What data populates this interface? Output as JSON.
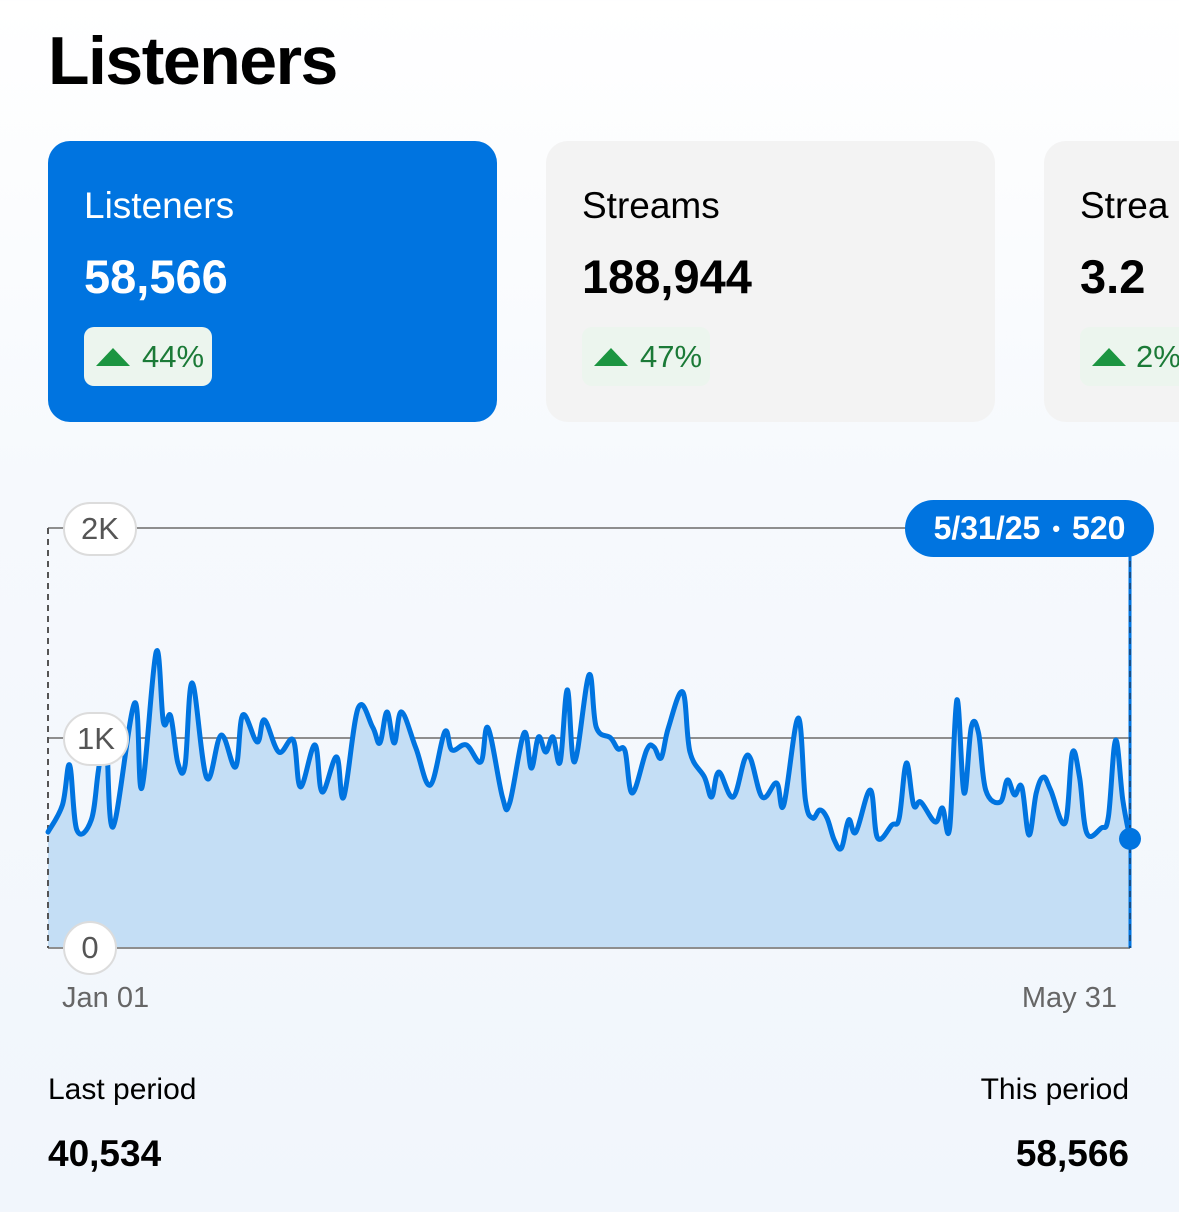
{
  "page_title": "Listeners",
  "cards": [
    {
      "label": "Listeners",
      "value": "58,566",
      "change": "44%",
      "direction": "up",
      "selected": true
    },
    {
      "label": "Streams",
      "value": "188,944",
      "change": "47%",
      "direction": "up",
      "selected": false
    },
    {
      "label": "Strea",
      "value": "3.2",
      "change": "2%",
      "direction": "up",
      "selected": false
    }
  ],
  "colors": {
    "accent": "#0074e0",
    "fill": "#c4def5",
    "positive": "#1c9541"
  },
  "tooltip": {
    "date": "5/31/25",
    "separator": "•",
    "value": "520"
  },
  "chart_data": {
    "type": "area",
    "title": "",
    "xlabel": "",
    "ylabel": "",
    "x_range": [
      "2025-01-01",
      "2025-05-31"
    ],
    "x_tick_labels": [
      "Jan 01",
      "May 31"
    ],
    "ylim": [
      0,
      2000
    ],
    "y_ticks": [
      {
        "value": 0,
        "label": "0"
      },
      {
        "value": 1000,
        "label": "1K"
      },
      {
        "value": 2000,
        "label": "2K"
      }
    ],
    "grid": true,
    "points": [
      [
        "2025-01-01",
        552
      ],
      [
        "2025-01-03",
        681
      ],
      [
        "2025-01-04",
        871
      ],
      [
        "2025-01-05",
        562
      ],
      [
        "2025-01-07",
        610
      ],
      [
        "2025-01-08",
        848
      ],
      [
        "2025-01-09",
        1050
      ],
      [
        "2025-01-10",
        576
      ],
      [
        "2025-01-13",
        1167
      ],
      [
        "2025-01-14",
        762
      ],
      [
        "2025-01-16",
        1410
      ],
      [
        "2025-01-17",
        1076
      ],
      [
        "2025-01-18",
        1105
      ],
      [
        "2025-01-19",
        881
      ],
      [
        "2025-01-20",
        870
      ],
      [
        "2025-01-21",
        1262
      ],
      [
        "2025-01-23",
        810
      ],
      [
        "2025-01-25",
        1014
      ],
      [
        "2025-01-27",
        862
      ],
      [
        "2025-01-28",
        1110
      ],
      [
        "2025-01-30",
        981
      ],
      [
        "2025-01-31",
        1086
      ],
      [
        "2025-02-02",
        933
      ],
      [
        "2025-02-04",
        990
      ],
      [
        "2025-02-05",
        767
      ],
      [
        "2025-02-07",
        967
      ],
      [
        "2025-02-08",
        743
      ],
      [
        "2025-02-10",
        910
      ],
      [
        "2025-02-11",
        719
      ],
      [
        "2025-02-13",
        1143
      ],
      [
        "2025-02-15",
        1052
      ],
      [
        "2025-02-16",
        976
      ],
      [
        "2025-02-17",
        1124
      ],
      [
        "2025-02-18",
        976
      ],
      [
        "2025-02-19",
        1124
      ],
      [
        "2025-02-21",
        952
      ],
      [
        "2025-02-23",
        776
      ],
      [
        "2025-02-25",
        1029
      ],
      [
        "2025-02-26",
        943
      ],
      [
        "2025-02-28",
        967
      ],
      [
        "2025-03-02",
        886
      ],
      [
        "2025-03-03",
        1048
      ],
      [
        "2025-03-05",
        719
      ],
      [
        "2025-03-06",
        690
      ],
      [
        "2025-03-08",
        1024
      ],
      [
        "2025-03-09",
        857
      ],
      [
        "2025-03-10",
        1005
      ],
      [
        "2025-03-11",
        933
      ],
      [
        "2025-03-12",
        1005
      ],
      [
        "2025-03-13",
        886
      ],
      [
        "2025-03-14",
        1229
      ],
      [
        "2025-03-15",
        886
      ],
      [
        "2025-03-17",
        1300
      ],
      [
        "2025-03-18",
        1052
      ],
      [
        "2025-03-20",
        1000
      ],
      [
        "2025-03-21",
        948
      ],
      [
        "2025-03-22",
        938
      ],
      [
        "2025-03-23",
        738
      ],
      [
        "2025-03-25",
        943
      ],
      [
        "2025-03-26",
        957
      ],
      [
        "2025-03-27",
        905
      ],
      [
        "2025-03-28",
        1048
      ],
      [
        "2025-03-30",
        1219
      ],
      [
        "2025-03-31",
        933
      ],
      [
        "2025-04-02",
        814
      ],
      [
        "2025-04-03",
        719
      ],
      [
        "2025-04-04",
        838
      ],
      [
        "2025-04-06",
        719
      ],
      [
        "2025-04-08",
        919
      ],
      [
        "2025-04-10",
        719
      ],
      [
        "2025-04-12",
        786
      ],
      [
        "2025-04-13",
        681
      ],
      [
        "2025-04-15",
        1095
      ],
      [
        "2025-04-16",
        705
      ],
      [
        "2025-04-17",
        619
      ],
      [
        "2025-04-18",
        657
      ],
      [
        "2025-04-19",
        619
      ],
      [
        "2025-04-20",
        514
      ],
      [
        "2025-04-21",
        476
      ],
      [
        "2025-04-22",
        610
      ],
      [
        "2025-04-23",
        552
      ],
      [
        "2025-04-25",
        752
      ],
      [
        "2025-04-26",
        524
      ],
      [
        "2025-04-28",
        586
      ],
      [
        "2025-04-29",
        619
      ],
      [
        "2025-04-30",
        881
      ],
      [
        "2025-05-01",
        681
      ],
      [
        "2025-05-02",
        695
      ],
      [
        "2025-05-04",
        600
      ],
      [
        "2025-05-05",
        667
      ],
      [
        "2025-05-06",
        571
      ],
      [
        "2025-05-07",
        1181
      ],
      [
        "2025-05-08",
        738
      ],
      [
        "2025-05-09",
        1052
      ],
      [
        "2025-05-10",
        1024
      ],
      [
        "2025-05-11",
        752
      ],
      [
        "2025-05-13",
        695
      ],
      [
        "2025-05-14",
        800
      ],
      [
        "2025-05-15",
        729
      ],
      [
        "2025-05-16",
        767
      ],
      [
        "2025-05-17",
        538
      ],
      [
        "2025-05-18",
        738
      ],
      [
        "2025-05-19",
        814
      ],
      [
        "2025-05-20",
        752
      ],
      [
        "2025-05-22",
        595
      ],
      [
        "2025-05-23",
        929
      ],
      [
        "2025-05-24",
        814
      ],
      [
        "2025-05-25",
        548
      ],
      [
        "2025-05-27",
        571
      ],
      [
        "2025-05-28",
        624
      ],
      [
        "2025-05-29",
        990
      ],
      [
        "2025-05-30",
        705
      ],
      [
        "2025-05-31",
        520
      ]
    ],
    "selected_point": [
      "2025-05-31",
      520
    ]
  },
  "footer": {
    "last_label": "Last period",
    "last_value": "40,534",
    "this_label": "This period",
    "this_value": "58,566"
  }
}
